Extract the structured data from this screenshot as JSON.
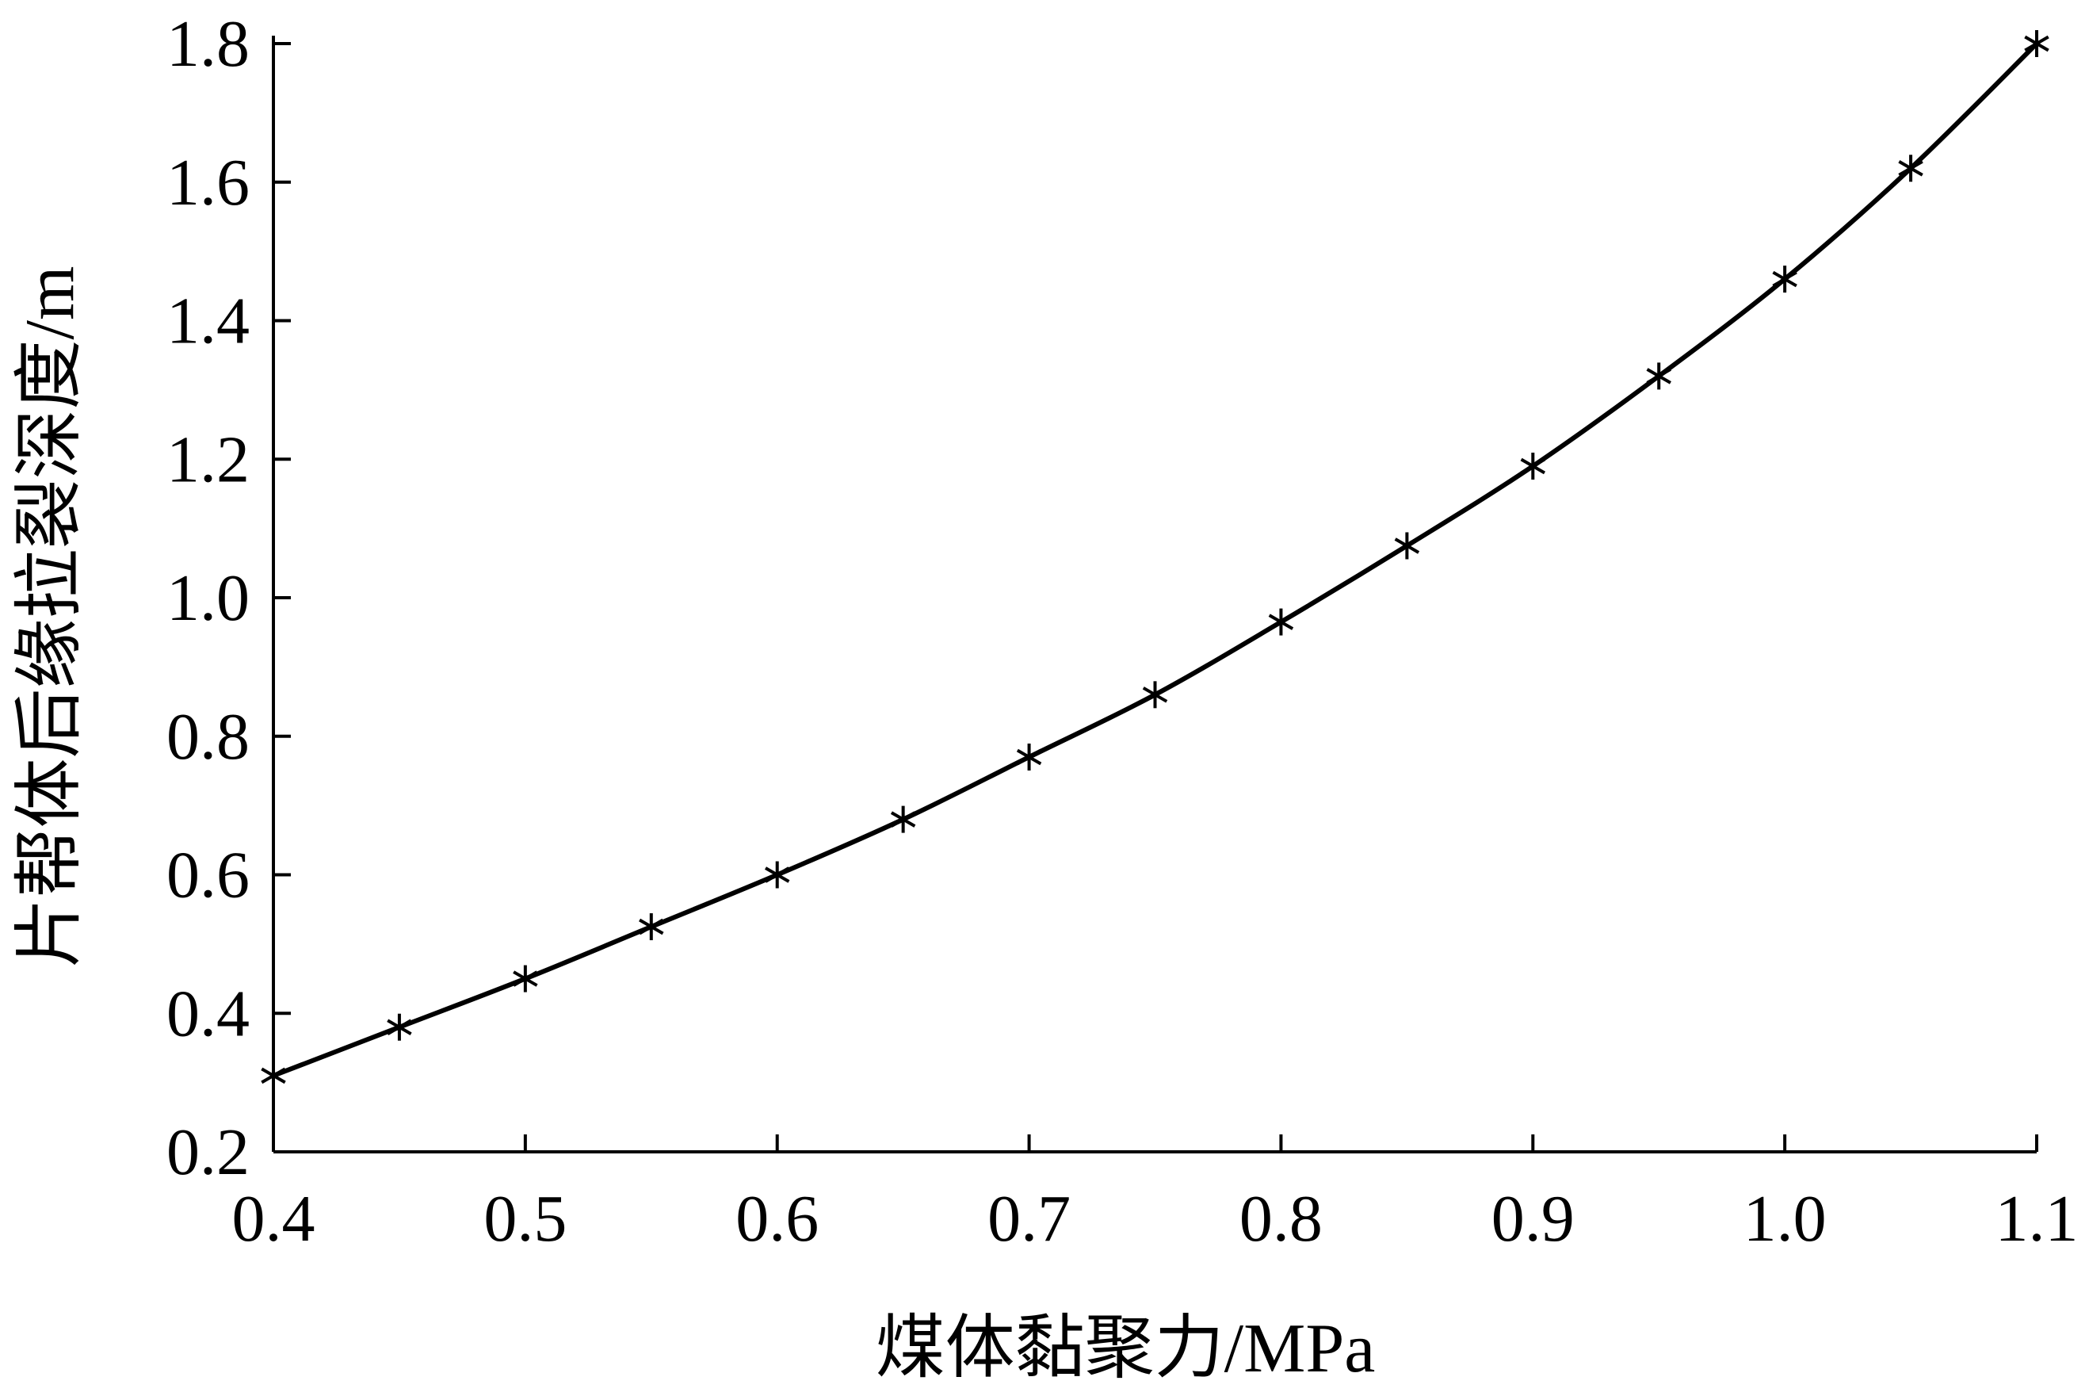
{
  "chart_data": {
    "type": "line",
    "title": "",
    "xlabel": "煤体黏聚力/MPa",
    "ylabel": "片帮体后缘拉裂深度/m",
    "xlim": [
      0.4,
      1.1
    ],
    "ylim": [
      0.2,
      1.8
    ],
    "xticks": [
      "0.4",
      "0.5",
      "0.6",
      "0.7",
      "0.8",
      "0.9",
      "1.0",
      "1.1"
    ],
    "yticks": [
      "0.2",
      "0.4",
      "0.6",
      "0.8",
      "1.0",
      "1.2",
      "1.4",
      "1.6",
      "1.8"
    ],
    "grid": false,
    "marker": "asterisk",
    "line_color": "#000000",
    "series": [
      {
        "x": [
          0.4,
          0.45,
          0.5,
          0.55,
          0.6,
          0.65,
          0.7,
          0.75,
          0.8,
          0.85,
          0.9,
          0.95,
          1.0,
          1.05,
          1.1
        ],
        "y": [
          0.31,
          0.38,
          0.45,
          0.525,
          0.6,
          0.68,
          0.77,
          0.86,
          0.965,
          1.075,
          1.19,
          1.32,
          1.46,
          1.62,
          1.8
        ]
      }
    ]
  }
}
